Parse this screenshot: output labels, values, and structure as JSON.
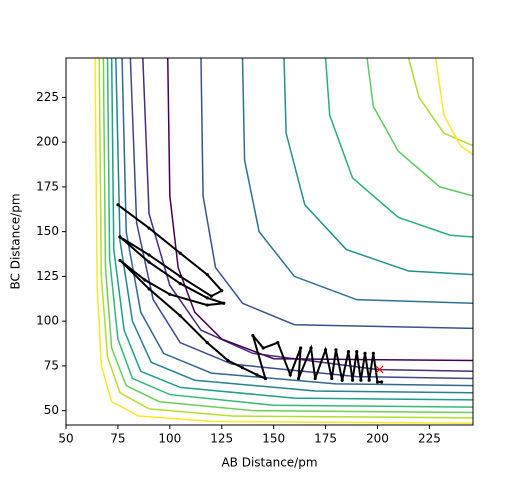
{
  "chart_data": {
    "type": "contour",
    "xlabel": "AB Distance/pm",
    "ylabel": "BC Distance/pm",
    "xlim": [
      50,
      246
    ],
    "ylim": [
      42,
      247
    ],
    "xticks": [
      50,
      75,
      100,
      125,
      150,
      175,
      200,
      225
    ],
    "yticks": [
      50,
      75,
      100,
      125,
      150,
      175,
      200,
      225
    ],
    "contours": [
      {
        "color": "#fde725",
        "x": [
          64,
          65,
          67,
          72,
          85,
          120,
          246
        ],
        "y": [
          247,
          120,
          75,
          55,
          47,
          44,
          43
        ]
      },
      {
        "color": "#b5de2b",
        "x": [
          66,
          67,
          70,
          76,
          90,
          130,
          246
        ],
        "y": [
          247,
          125,
          80,
          60,
          51,
          47,
          46
        ]
      },
      {
        "color": "#6ece58",
        "x": [
          68,
          69,
          72,
          79,
          95,
          140,
          246
        ],
        "y": [
          247,
          130,
          85,
          64,
          55,
          50,
          49
        ]
      },
      {
        "color": "#35b779",
        "x": [
          70,
          71,
          75,
          82,
          100,
          150,
          246
        ],
        "y": [
          247,
          135,
          90,
          68,
          59,
          53,
          52
        ]
      },
      {
        "color": "#1f9e89",
        "x": [
          72,
          73,
          78,
          86,
          105,
          160,
          246
        ],
        "y": [
          247,
          140,
          95,
          72,
          63,
          57,
          56
        ]
      },
      {
        "color": "#26828e",
        "x": [
          74,
          76,
          82,
          91,
          112,
          170,
          246
        ],
        "y": [
          247,
          145,
          100,
          77,
          67,
          61,
          60
        ]
      },
      {
        "color": "#31688e",
        "x": [
          77,
          79,
          86,
          97,
          120,
          180,
          246
        ],
        "y": [
          247,
          150,
          105,
          82,
          71,
          65,
          64
        ]
      },
      {
        "color": "#3e4989",
        "x": [
          81,
          84,
          92,
          105,
          130,
          190,
          246
        ],
        "y": [
          247,
          155,
          112,
          88,
          76,
          69,
          68
        ]
      },
      {
        "color": "#472d7b",
        "x": [
          87,
          90,
          100,
          115,
          140,
          200,
          246
        ],
        "y": [
          247,
          160,
          120,
          95,
          82,
          73,
          72
        ]
      },
      {
        "color": "#440154",
        "x": [
          99,
          100,
          104,
          112,
          125,
          150,
          246
        ],
        "y": [
          247,
          170,
          130,
          105,
          90,
          79,
          78
        ]
      },
      {
        "color": "#3b528b",
        "x": [
          115,
          116,
          122,
          135,
          160,
          246
        ],
        "y": [
          247,
          170,
          130,
          110,
          98,
          96
        ]
      },
      {
        "color": "#2c728e",
        "x": [
          135,
          136,
          143,
          160,
          190,
          246
        ],
        "y": [
          247,
          190,
          150,
          125,
          112,
          110
        ]
      },
      {
        "color": "#21918c",
        "x": [
          155,
          156,
          165,
          185,
          215,
          246
        ],
        "y": [
          247,
          205,
          165,
          140,
          128,
          126
        ]
      },
      {
        "color": "#28ae80",
        "x": [
          175,
          177,
          188,
          210,
          235,
          246
        ],
        "y": [
          247,
          215,
          180,
          158,
          148,
          147
        ]
      },
      {
        "color": "#5ec962",
        "x": [
          195,
          198,
          210,
          230,
          246
        ],
        "y": [
          247,
          220,
          195,
          175,
          170
        ]
      },
      {
        "color": "#addc30",
        "x": [
          215,
          220,
          232,
          246
        ],
        "y": [
          247,
          225,
          205,
          198
        ]
      },
      {
        "color": "#fde725",
        "x": [
          228,
          232,
          240,
          246
        ],
        "y": [
          247,
          215,
          198,
          193
        ]
      }
    ],
    "trajectory": {
      "color": "#000000",
      "x": [
        75,
        90,
        105,
        118,
        125,
        120,
        105,
        90,
        76,
        90,
        105,
        118,
        126,
        118,
        100,
        88,
        76,
        90,
        105,
        118,
        128,
        135,
        142,
        146,
        140,
        145,
        152,
        158,
        163,
        162,
        168,
        170,
        175,
        178,
        180,
        183,
        186,
        188,
        190,
        192,
        194,
        196,
        198,
        200,
        202
      ],
      "y": [
        165,
        152,
        138,
        126,
        117,
        114,
        125,
        137,
        147,
        133,
        121,
        113,
        110,
        109,
        115,
        123,
        134,
        118,
        103,
        88,
        78,
        74,
        70,
        68,
        92,
        85,
        88,
        70,
        85,
        68,
        85,
        68,
        84,
        68,
        84,
        67,
        83,
        67,
        83,
        67,
        82,
        67,
        82,
        66,
        66
      ]
    },
    "marker": {
      "x": 201,
      "y": 73,
      "color": "#ff0000"
    }
  }
}
